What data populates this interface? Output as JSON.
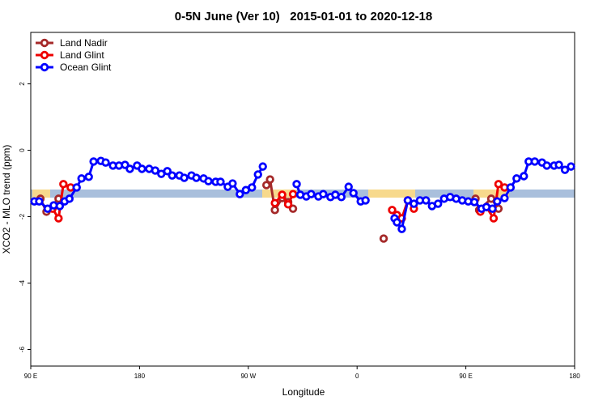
{
  "chart_data": {
    "type": "line",
    "title": "0-5N June (Ver 10)   2015-01-01 to 2020-12-18",
    "x_label": "Longitude",
    "y_label": "XCO2 - MLO trend (ppm)",
    "xlim": [
      90,
      540
    ],
    "ylim": [
      -6.5,
      3.55
    ],
    "xticks": [
      {
        "value": 90,
        "label": "90 E"
      },
      180,
      {
        "value": 270,
        "label": "90 W"
      },
      {
        "value": 360,
        "label": "0"
      },
      {
        "value": 450,
        "label": "90 E"
      },
      {
        "value": 540,
        "label": "180"
      }
    ],
    "yticks": [
      2,
      0,
      -2,
      -4,
      -6
    ],
    "legend": "top-left",
    "series": [
      {
        "name": "Land Nadir",
        "color": "#a52a2a",
        "x": [
          98,
          103,
          113,
          null,
          285,
          288,
          292,
          298,
          303,
          307,
          null,
          382,
          null,
          458,
          461,
          471,
          477
        ],
        "values": [
          -1.46,
          -1.85,
          -1.46,
          null,
          -1.05,
          -0.88,
          -1.8,
          -1.44,
          -1.56,
          -1.76,
          null,
          -2.66,
          null,
          -1.46,
          -1.8,
          -1.46,
          -1.76
        ]
      },
      {
        "name": "Land Glint",
        "color": "#ee0000",
        "x": [
          108,
          113,
          117,
          123,
          null,
          292,
          298,
          303,
          307,
          null,
          389,
          393,
          397,
          402,
          407,
          null,
          462,
          467,
          473,
          477,
          482
        ],
        "values": [
          -1.76,
          -2.05,
          -1.02,
          -1.12,
          null,
          -1.59,
          -1.34,
          -1.63,
          -1.32,
          null,
          -1.8,
          -1.95,
          -2.05,
          -1.51,
          -1.76,
          null,
          -1.85,
          -1.71,
          -2.05,
          -1.02,
          -1.12
        ]
      },
      {
        "name": "Ocean Glint",
        "color": "#0000ff",
        "x": [
          93,
          97,
          104,
          109,
          114,
          118,
          122,
          128,
          132,
          138,
          142,
          148,
          152,
          158,
          163,
          168,
          172,
          178,
          182,
          188,
          193,
          198,
          203,
          207,
          213,
          217,
          223,
          227,
          233,
          237,
          243,
          247,
          253,
          257,
          263,
          268,
          273,
          278,
          282,
          null,
          310,
          313,
          318,
          322,
          328,
          332,
          338,
          342,
          347,
          353,
          357,
          363,
          367,
          null,
          391,
          393,
          397,
          402,
          407,
          412,
          417,
          422,
          427,
          432,
          437,
          442,
          447,
          452,
          457,
          463,
          467,
          472,
          476,
          482,
          487,
          492,
          498,
          502,
          507,
          513,
          517,
          523,
          527,
          532,
          537
        ],
        "values": [
          -1.54,
          -1.54,
          -1.76,
          -1.66,
          -1.68,
          -1.54,
          -1.46,
          -1.12,
          -0.85,
          -0.8,
          -0.34,
          -0.32,
          -0.37,
          -0.46,
          -0.46,
          -0.44,
          -0.56,
          -0.46,
          -0.56,
          -0.56,
          -0.61,
          -0.71,
          -0.63,
          -0.76,
          -0.76,
          -0.83,
          -0.76,
          -0.83,
          -0.85,
          -0.93,
          -0.95,
          -0.95,
          -1.1,
          -1.0,
          -1.32,
          -1.2,
          -1.12,
          -0.73,
          -0.49,
          null,
          -1.02,
          -1.34,
          -1.39,
          -1.32,
          -1.39,
          -1.32,
          -1.41,
          -1.34,
          -1.41,
          -1.1,
          -1.29,
          -1.54,
          -1.51,
          null,
          -2.05,
          -2.17,
          -2.37,
          -1.51,
          -1.61,
          -1.51,
          -1.51,
          -1.68,
          -1.61,
          -1.46,
          -1.41,
          -1.46,
          -1.51,
          -1.54,
          -1.56,
          -1.76,
          -1.71,
          -1.76,
          -1.54,
          -1.44,
          -1.12,
          -0.85,
          -0.78,
          -0.34,
          -0.34,
          -0.37,
          -0.46,
          -0.46,
          -0.44,
          -0.59,
          -0.49
        ]
      }
    ]
  }
}
